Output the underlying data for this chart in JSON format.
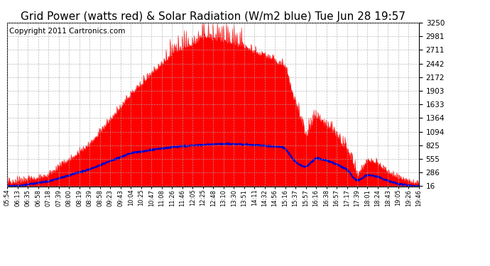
{
  "title": "Grid Power (watts red) & Solar Radiation (W/m2 blue) Tue Jun 28 19:57",
  "copyright": "Copyright 2011 Cartronics.com",
  "yticks": [
    16.4,
    285.8,
    555.3,
    824.8,
    1094.3,
    1363.8,
    1633.2,
    1902.7,
    2172.2,
    2441.7,
    2711.2,
    2980.7,
    3250.1
  ],
  "ymin": 16.4,
  "ymax": 3250.1,
  "xtick_labels": [
    "05:54",
    "06:13",
    "06:35",
    "06:58",
    "07:18",
    "07:39",
    "08:00",
    "08:19",
    "08:39",
    "08:58",
    "09:23",
    "09:43",
    "10:04",
    "10:25",
    "10:47",
    "11:08",
    "11:26",
    "11:46",
    "12:05",
    "12:25",
    "12:48",
    "13:10",
    "13:30",
    "13:51",
    "14:11",
    "14:32",
    "14:56",
    "15:16",
    "15:37",
    "15:57",
    "16:16",
    "16:38",
    "16:57",
    "17:17",
    "17:39",
    "18:01",
    "18:24",
    "18:43",
    "19:05",
    "19:26",
    "19:46"
  ],
  "bg_color": "#ffffff",
  "plot_bg": "#ffffff",
  "grid_color": "#aaaaaa",
  "red_color": "#ff0000",
  "blue_color": "#0000cc",
  "title_fontsize": 11,
  "copyright_fontsize": 7.5
}
